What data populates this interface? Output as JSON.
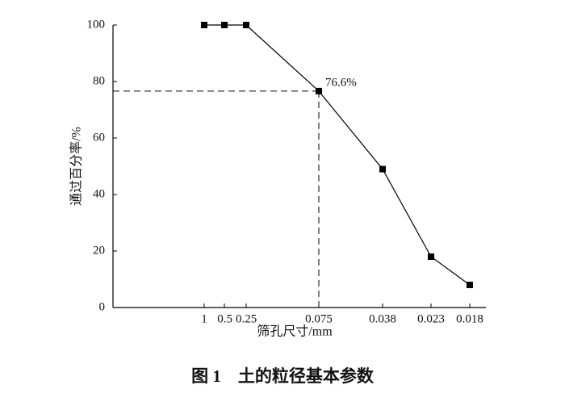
{
  "chart_data": {
    "type": "line",
    "caption": "图 1　土的粒径基本参数",
    "x_label": "筛孔尺寸/mm",
    "y_label": "通过百分率/%",
    "categories": [
      "1",
      "0.5",
      "0.25",
      "0.075",
      "0.038",
      "0.023",
      "0.018"
    ],
    "series": [
      {
        "color": "#000000",
        "values": [
          100,
          100,
          100,
          76.6,
          49,
          18,
          8
        ],
        "value_labels": [
          null,
          null,
          null,
          "76.6%",
          null,
          null,
          null
        ]
      }
    ],
    "ylim": [
      0,
      100
    ],
    "yticks": [
      0,
      20,
      40,
      60,
      80,
      100
    ],
    "grid": false
  }
}
